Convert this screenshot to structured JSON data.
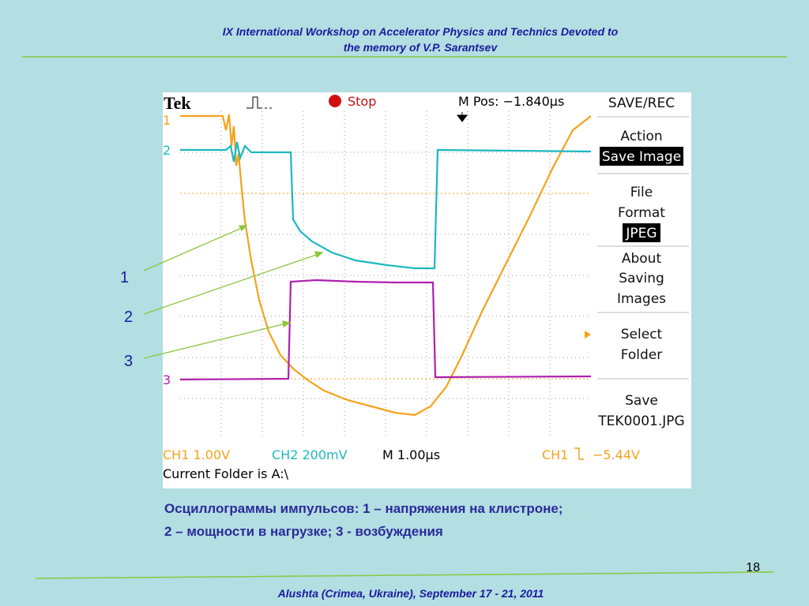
{
  "header": {
    "lines": [
      "IX International Workshop on  Accelerator Physics and  Technics Devoted to",
      "the memory of  V.P. Sarantsev"
    ]
  },
  "scope": {
    "brand": "Tek",
    "status": "Stop",
    "position": "M Pos: −1.840µs",
    "menu": {
      "title": "SAVE/REC",
      "items": [
        [
          "Action",
          "Save Image"
        ],
        [
          "File",
          "Format",
          "JPEG"
        ],
        [
          "About",
          "Saving",
          "Images"
        ],
        [
          "Select",
          "Folder"
        ],
        [
          "Save",
          "TEK0001.JPG"
        ]
      ]
    },
    "channel_markers": [
      "1",
      "2",
      "3"
    ],
    "ch1_scale": "CH1  1.00V",
    "ch2_scale": "CH2  200mV",
    "time_scale": "M 1.00µs",
    "trigger_channel": "CH1",
    "trigger_level": "−5.44V",
    "folder": "Current Folder is A:\\"
  },
  "trace_labels": [
    "1",
    "2",
    "3"
  ],
  "caption": [
    "Осциллограммы импульсов: 1 – напряжения на клистроне;",
    "2 – мощности в нагрузке; 3 - возбуждения"
  ],
  "page_number": 18,
  "footer": "Alushta (Crimea, Ukraine), September 17 - 21, 2011"
}
